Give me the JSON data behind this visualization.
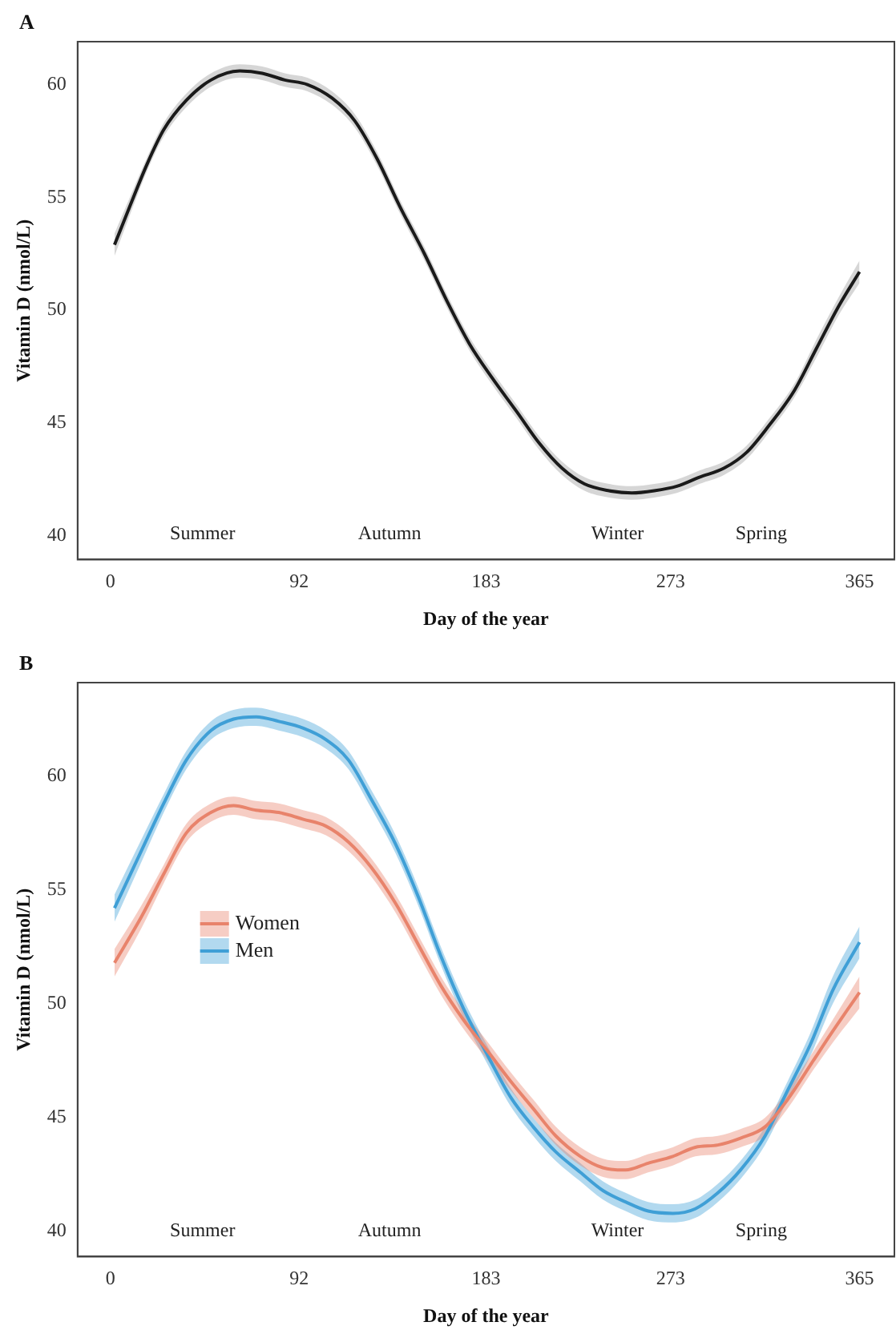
{
  "chart_data": [
    {
      "type": "line",
      "title": "A",
      "xlabel": "Day of the year",
      "ylabel": "Vitamin D (nmol/L)",
      "xlim": [
        -16,
        382
      ],
      "xticks": [
        0,
        92,
        183,
        273,
        365
      ],
      "ylim": [
        38.95,
        61.9
      ],
      "yticks": [
        40,
        45,
        50,
        55,
        60
      ],
      "grid": false,
      "legend": false,
      "annotations": [
        "Summer",
        "Autumn",
        "Winter",
        "Spring"
      ],
      "series": [
        {
          "color": "#1a1a1a",
          "x": [
            2,
            9,
            18,
            26,
            37,
            49,
            63,
            74,
            85,
            96,
            108,
            119,
            130,
            141,
            153,
            164,
            175,
            186,
            198,
            209,
            220,
            231,
            243,
            254,
            265,
            276,
            287,
            299,
            310,
            321,
            333,
            344,
            355,
            365
          ],
          "values": [
            52.9,
            54.5,
            56.5,
            58.0,
            59.3,
            60.2,
            60.6,
            60.5,
            60.2,
            60.0,
            59.4,
            58.4,
            56.7,
            54.6,
            52.5,
            50.4,
            48.5,
            47.0,
            45.5,
            44.1,
            43.0,
            42.3,
            42.0,
            41.9,
            42.0,
            42.2,
            42.6,
            43.0,
            43.7,
            44.9,
            46.4,
            48.3,
            50.2,
            51.7
          ],
          "lower": [
            52.4,
            54.1,
            56.2,
            57.7,
            59.0,
            59.9,
            60.3,
            60.2,
            59.9,
            59.7,
            59.1,
            58.1,
            56.4,
            54.3,
            52.2,
            50.1,
            48.2,
            46.7,
            45.2,
            43.8,
            42.7,
            42.0,
            41.7,
            41.6,
            41.7,
            41.9,
            42.3,
            42.7,
            43.4,
            44.6,
            46.1,
            47.9,
            49.8,
            51.2
          ],
          "upper": [
            53.4,
            54.9,
            56.8,
            58.3,
            59.6,
            60.5,
            60.9,
            60.8,
            60.5,
            60.3,
            59.7,
            58.7,
            57.0,
            54.9,
            52.8,
            50.7,
            48.8,
            47.3,
            45.8,
            44.4,
            43.3,
            42.6,
            42.3,
            42.2,
            42.3,
            42.5,
            42.9,
            43.3,
            44.0,
            45.2,
            46.7,
            48.7,
            50.6,
            52.2
          ]
        }
      ]
    },
    {
      "type": "line",
      "title": "B",
      "xlabel": "Day of the year",
      "ylabel": "Vitamin D (nmol/L)",
      "xlim": [
        -16,
        382
      ],
      "xticks": [
        0,
        92,
        183,
        273,
        365
      ],
      "ylim": [
        38.9,
        64.1
      ],
      "yticks": [
        40,
        45,
        50,
        55,
        60
      ],
      "grid": false,
      "legend": "left",
      "annotations": [
        "Summer",
        "Autumn",
        "Winter",
        "Spring"
      ],
      "series": [
        {
          "name": "Women",
          "color": "#e8836b",
          "x": [
            2,
            15,
            26,
            37,
            49,
            60,
            71,
            82,
            94,
            105,
            116,
            127,
            139,
            150,
            161,
            172,
            184,
            195,
            206,
            217,
            229,
            240,
            251,
            262,
            274,
            285,
            296,
            307,
            319,
            330,
            341,
            352,
            365
          ],
          "values": [
            51.8,
            53.8,
            55.7,
            57.5,
            58.4,
            58.7,
            58.5,
            58.4,
            58.1,
            57.8,
            57.1,
            56.0,
            54.4,
            52.6,
            50.8,
            49.3,
            47.9,
            46.6,
            45.4,
            44.2,
            43.3,
            42.8,
            42.7,
            43.0,
            43.3,
            43.7,
            43.8,
            44.1,
            44.6,
            45.8,
            47.3,
            48.8,
            50.5
          ],
          "lower": [
            51.2,
            53.3,
            55.3,
            57.1,
            58.0,
            58.3,
            58.1,
            58.0,
            57.7,
            57.4,
            56.7,
            55.6,
            54.0,
            52.2,
            50.4,
            48.9,
            47.5,
            46.2,
            45.0,
            43.8,
            42.9,
            42.4,
            42.3,
            42.6,
            42.9,
            43.3,
            43.4,
            43.7,
            44.2,
            45.4,
            46.9,
            48.3,
            49.8
          ],
          "upper": [
            52.4,
            54.3,
            56.1,
            57.9,
            58.8,
            59.1,
            58.9,
            58.8,
            58.5,
            58.2,
            57.5,
            56.4,
            54.8,
            53.0,
            51.2,
            49.7,
            48.3,
            47.0,
            45.8,
            44.6,
            43.7,
            43.2,
            43.1,
            43.4,
            43.7,
            44.1,
            44.2,
            44.5,
            45.0,
            46.2,
            47.7,
            49.3,
            51.2
          ]
        },
        {
          "name": "Men",
          "color": "#3f9fd6",
          "x": [
            2,
            15,
            26,
            37,
            49,
            60,
            71,
            82,
            94,
            105,
            116,
            127,
            139,
            150,
            161,
            172,
            184,
            195,
            206,
            217,
            229,
            240,
            251,
            262,
            274,
            285,
            296,
            307,
            319,
            330,
            341,
            352,
            365
          ],
          "values": [
            54.2,
            56.7,
            58.8,
            60.7,
            62.0,
            62.5,
            62.6,
            62.4,
            62.1,
            61.6,
            60.7,
            59.0,
            57.0,
            54.7,
            52.1,
            49.8,
            47.7,
            45.9,
            44.6,
            43.5,
            42.6,
            41.8,
            41.3,
            40.9,
            40.8,
            41.0,
            41.7,
            42.7,
            44.2,
            46.2,
            48.2,
            50.6,
            52.7
          ],
          "lower": [
            53.6,
            56.2,
            58.4,
            60.3,
            61.6,
            62.1,
            62.2,
            62.0,
            61.7,
            61.2,
            60.3,
            58.6,
            56.6,
            54.3,
            51.7,
            49.4,
            47.3,
            45.5,
            44.2,
            43.1,
            42.2,
            41.4,
            40.9,
            40.5,
            40.4,
            40.6,
            41.3,
            42.3,
            43.8,
            45.8,
            47.7,
            50.0,
            52.0
          ],
          "upper": [
            54.8,
            57.2,
            59.2,
            61.1,
            62.4,
            62.9,
            63.0,
            62.8,
            62.5,
            62.0,
            61.1,
            59.4,
            57.4,
            55.1,
            52.5,
            50.2,
            48.1,
            46.3,
            45.0,
            43.9,
            43.0,
            42.2,
            41.7,
            41.3,
            41.2,
            41.4,
            42.1,
            43.1,
            44.6,
            46.6,
            48.7,
            51.2,
            53.4
          ]
        }
      ]
    }
  ]
}
